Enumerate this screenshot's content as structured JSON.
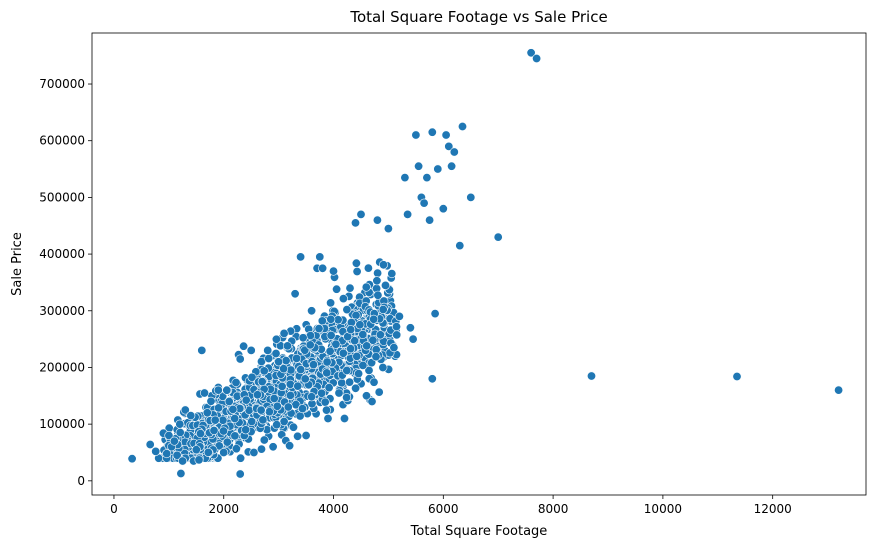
{
  "chart_data": {
    "type": "scatter",
    "title": "Total Square Footage vs Sale Price",
    "xlabel": "Total Square Footage",
    "ylabel": "Sale Price",
    "xlim": [
      -400,
      13700
    ],
    "ylim": [
      -25000,
      790000
    ],
    "x_ticks": [
      0,
      2000,
      4000,
      6000,
      8000,
      10000,
      12000
    ],
    "y_ticks": [
      0,
      100000,
      200000,
      300000,
      400000,
      500000,
      600000,
      700000
    ],
    "x_tick_labels": [
      "0",
      "2000",
      "4000",
      "6000",
      "8000",
      "10000",
      "12000"
    ],
    "y_tick_labels": [
      "0",
      "100000",
      "200000",
      "300000",
      "400000",
      "500000",
      "600000",
      "700000"
    ],
    "grid": false,
    "legend": "none",
    "marker_color": "#1f77b4",
    "point_count_estimate": 1460,
    "points": [
      [
        330,
        39000
      ],
      [
        660,
        64000
      ],
      [
        760,
        52000
      ],
      [
        900,
        84000
      ],
      [
        960,
        48000
      ],
      [
        1000,
        80000
      ],
      [
        1050,
        60000
      ],
      [
        1100,
        70000
      ],
      [
        1150,
        45000
      ],
      [
        1200,
        100000
      ],
      [
        1220,
        13000
      ],
      [
        1250,
        35000
      ],
      [
        1300,
        125000
      ],
      [
        1400,
        115000
      ],
      [
        1450,
        35000
      ],
      [
        1500,
        55000
      ],
      [
        1550,
        37000
      ],
      [
        1600,
        230000
      ],
      [
        1650,
        155000
      ],
      [
        1700,
        120000
      ],
      [
        1900,
        160000
      ],
      [
        2000,
        50000
      ],
      [
        2100,
        140000
      ],
      [
        2200,
        110000
      ],
      [
        2300,
        12000
      ],
      [
        2300,
        215000
      ],
      [
        2400,
        90000
      ],
      [
        2500,
        230000
      ],
      [
        2550,
        50000
      ],
      [
        2700,
        175000
      ],
      [
        2800,
        230000
      ],
      [
        2900,
        60000
      ],
      [
        3000,
        210000
      ],
      [
        3100,
        260000
      ],
      [
        3200,
        62000
      ],
      [
        3300,
        330000
      ],
      [
        3400,
        395000
      ],
      [
        3500,
        80000
      ],
      [
        3600,
        300000
      ],
      [
        3700,
        375000
      ],
      [
        3750,
        395000
      ],
      [
        3800,
        375000
      ],
      [
        3900,
        110000
      ],
      [
        4000,
        370000
      ],
      [
        4100,
        155000
      ],
      [
        4200,
        110000
      ],
      [
        4300,
        340000
      ],
      [
        4400,
        455000
      ],
      [
        4500,
        470000
      ],
      [
        4600,
        150000
      ],
      [
        4700,
        140000
      ],
      [
        4800,
        460000
      ],
      [
        4900,
        200000
      ],
      [
        5000,
        445000
      ],
      [
        5100,
        235000
      ],
      [
        5200,
        290000
      ],
      [
        5300,
        535000
      ],
      [
        5350,
        470000
      ],
      [
        5400,
        270000
      ],
      [
        5450,
        250000
      ],
      [
        5500,
        610000
      ],
      [
        5550,
        555000
      ],
      [
        5600,
        500000
      ],
      [
        5650,
        490000
      ],
      [
        5700,
        535000
      ],
      [
        5750,
        460000
      ],
      [
        5800,
        615000
      ],
      [
        5800,
        180000
      ],
      [
        5850,
        295000
      ],
      [
        5900,
        550000
      ],
      [
        6000,
        480000
      ],
      [
        6050,
        610000
      ],
      [
        6100,
        590000
      ],
      [
        6150,
        555000
      ],
      [
        6200,
        580000
      ],
      [
        6300,
        415000
      ],
      [
        6350,
        625000
      ],
      [
        6500,
        500000
      ],
      [
        7000,
        430000
      ],
      [
        7600,
        755000
      ],
      [
        7700,
        745000
      ],
      [
        8700,
        185000
      ],
      [
        11350,
        184000
      ],
      [
        13200,
        160000
      ]
    ]
  }
}
